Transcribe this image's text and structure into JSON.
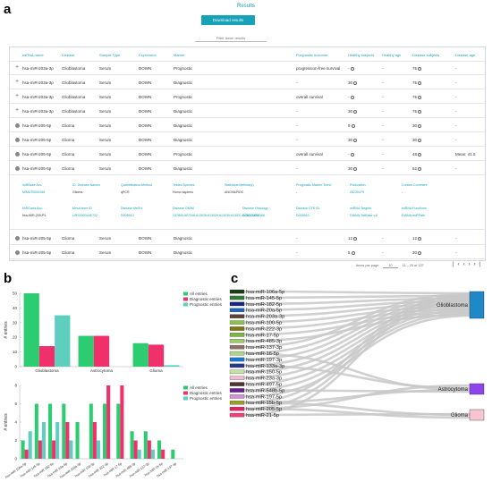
{
  "panel_labels": {
    "a": "a",
    "b": "b",
    "c": "c"
  },
  "results_title": "Results",
  "download_label": "Download results",
  "filter_placeholder": "Filter down results",
  "table": {
    "headers": [
      "miRNA name",
      "Disease",
      "Sample Type",
      "Expression",
      "Marker",
      "Prognostic outcome",
      "Healthy subjects",
      "Healthy age",
      "Disease subjects",
      "Disease age"
    ],
    "rows": [
      {
        "mirna": "hsa-miR-203a-3p",
        "disease": "Glioblastoma",
        "sample": "Serum",
        "expr": "DOWN",
        "marker": "Prognostic",
        "outcome": "progression-free survival",
        "healthy": "-",
        "hage": "-",
        "dsub": "75",
        "dage": "-"
      },
      {
        "mirna": "hsa-miR-203a-3p",
        "disease": "Glioblastoma",
        "sample": "Serum",
        "expr": "DOWN",
        "marker": "Diagnostic",
        "outcome": "-",
        "healthy": "30",
        "hage": "-",
        "dsub": "75",
        "dage": "-"
      },
      {
        "mirna": "hsa-miR-203a-3p",
        "disease": "Glioblastoma",
        "sample": "Serum",
        "expr": "DOWN",
        "marker": "Prognostic",
        "outcome": "overall survival",
        "healthy": "-",
        "hage": "-",
        "dsub": "75",
        "dage": "-"
      },
      {
        "mirna": "hsa-miR-203a-3p",
        "disease": "Glioblastoma",
        "sample": "Serum",
        "expr": "DOWN",
        "marker": "Diagnostic",
        "outcome": "-",
        "healthy": "30",
        "hage": "-",
        "dsub": "75",
        "dage": "-"
      },
      {
        "mirna": "hsa-miR-205-5p",
        "disease": "Glioma",
        "sample": "Serum",
        "expr": "DOWN",
        "marker": "Diagnostic",
        "outcome": "-",
        "healthy": "9",
        "hage": "-",
        "dsub": "30",
        "dage": "-"
      },
      {
        "mirna": "hsa-miR-205-5p",
        "disease": "Glioma",
        "sample": "Serum",
        "expr": "DOWN",
        "marker": "Diagnostic",
        "outcome": "-",
        "healthy": "30",
        "hage": "-",
        "dsub": "30",
        "dage": "-"
      },
      {
        "mirna": "hsa-miR-205-5p",
        "disease": "Glioma",
        "sample": "Serum",
        "expr": "DOWN",
        "marker": "Prognostic",
        "outcome": "overall survival",
        "healthy": "-",
        "hage": "-",
        "dsub": "48",
        "dage": "Mean: 41.5"
      },
      {
        "mirna": "hsa-miR-205-5p",
        "disease": "Glioma",
        "sample": "Serum",
        "expr": "DOWN",
        "marker": "Diagnostic",
        "outcome": "-",
        "healthy": "30",
        "hage": "-",
        "dsub": "52",
        "dage": "-"
      }
    ],
    "bottom_rows": [
      {
        "mirna": "hsa-miR-205-5p",
        "disease": "Glioma",
        "sample": "Serum",
        "expr": "DOWN",
        "marker": "Diagnostic",
        "outcome": "-",
        "healthy": "12",
        "hage": "-",
        "dsub": "12",
        "dage": "-"
      },
      {
        "mirna": "hsa-miR-205-5p",
        "disease": "Glioma",
        "sample": "Serum",
        "expr": "DOWN",
        "marker": "Diagnostic",
        "outcome": "-",
        "healthy": "5",
        "hage": "-",
        "dsub": "30",
        "dage": "-"
      }
    ],
    "detail": {
      "l1": [
        "miRBase Acc.",
        "ID. Disease Names",
        "Quantification Method",
        "Tested Species",
        "Statistical Method(s)",
        "Prognostic Marker Trend",
        "Publication",
        "Curator Comment"
      ],
      "v1": [
        "MIMAT0000266",
        "Glioma",
        "qPCR",
        "Homo sapiens",
        "ANOVA/ROC",
        "-",
        "28230479",
        "-"
      ],
      "l2": [
        "MiRCarta Acc.",
        "Mesh-term ID",
        "Disease MeSH",
        "Disease OMIM",
        "Disease Ontology",
        "Disease CTD ID",
        "miRNA Targets",
        "miRNA Functions"
      ],
      "v2": [
        "hsa-MIR-205-P1",
        "URS000044E722",
        "D005910",
        "137800;607248;613028;613029;613030;613031;613032;616568",
        "DOID:3070",
        "D005910",
        "DIANA-TarBase v.8",
        "DIANA-miRPath"
      ]
    },
    "rows_per_page_label": "Items per page",
    "rows_per_page": "10",
    "range_label": "11 – 20 of 137"
  },
  "chart_b1": {
    "type": "bar",
    "categories": [
      "Glioblastoma",
      "Astrocytoma",
      "Glioma"
    ],
    "series": [
      {
        "name": "All entries",
        "values": [
          50,
          21,
          16
        ],
        "color": "#2ecc71"
      },
      {
        "name": "Diagnostic entries",
        "values": [
          14,
          21,
          15
        ],
        "color": "#f0306a"
      },
      {
        "name": "Prognostic entries",
        "values": [
          35,
          0,
          1
        ],
        "color": "#5ecfbf"
      }
    ],
    "ylabel": "# entries",
    "yticks": [
      "50",
      "40",
      "30",
      "20",
      "10",
      "0"
    ],
    "ylim": [
      0,
      50
    ]
  },
  "chart_b2": {
    "type": "bar",
    "categories": [
      "hsa-miR-106a-5p",
      "hsa-miR-145-5p",
      "hsa-miR-182-5p",
      "hsa-miR-20a-5p",
      "hsa-miR-203a-3p",
      "hsa-miR-100-5p",
      "hsa-miR-222-3p",
      "hsa-miR-17-5p",
      "hsa-miR-485-3p",
      "hsa-miR-137-3p",
      "hsa-miR-16-5p",
      "hsa-miR-197-3p"
    ],
    "series": [
      {
        "name": "All entries",
        "values": [
          2,
          6,
          6,
          6,
          4,
          6,
          6,
          6,
          3,
          3,
          2,
          1
        ],
        "color": "#2ecc71"
      },
      {
        "name": "Diagnostic entries",
        "values": [
          1,
          2,
          2,
          4,
          0,
          4,
          8,
          8,
          2,
          2,
          1,
          0
        ],
        "color": "#f0306a"
      },
      {
        "name": "Prognostic entries",
        "values": [
          3,
          4,
          4,
          2,
          0,
          2,
          0,
          0,
          1,
          1,
          0,
          0
        ],
        "color": "#5ecfbf"
      }
    ],
    "ylabel": "# entries",
    "yticks": [
      "8",
      "6",
      "4",
      "2",
      "0"
    ],
    "ylim": [
      0,
      8
    ]
  },
  "sankey": {
    "genes": [
      {
        "name": "hsa-miR-106a-5p",
        "color": "#1b3a1a"
      },
      {
        "name": "hsa-miR-145-5p",
        "color": "#2e7d32"
      },
      {
        "name": "hsa-miR-182-5p",
        "color": "#1a237e"
      },
      {
        "name": "hsa-miR-20a-5p",
        "color": "#1565c0"
      },
      {
        "name": "hsa-miR-203a-3p",
        "color": "#5d4037"
      },
      {
        "name": "hsa-miR-100-5p",
        "color": "#8bc34a"
      },
      {
        "name": "hsa-miR-222-3p",
        "color": "#827717"
      },
      {
        "name": "hsa-miR-17-5p",
        "color": "#7cb342"
      },
      {
        "name": "hsa-miR-485-3p",
        "color": "#9ccc65"
      },
      {
        "name": "hsa-miR-137-3p",
        "color": "#8d6e63"
      },
      {
        "name": "hsa-miR-16-5p",
        "color": "#aed581"
      },
      {
        "name": "hsa-miR-197-3p",
        "color": "#1976d2"
      },
      {
        "name": "hsa-miR-133a-3p",
        "color": "#283593"
      },
      {
        "name": "hsa-miR-150-5p",
        "color": "#c5e1a5"
      },
      {
        "name": "hsa-miR-23a-3p",
        "color": "#f8bbd0"
      },
      {
        "name": "hsa-miR-497-5p",
        "color": "#4e342e"
      },
      {
        "name": "hsa-miR-548b-5p",
        "color": "#6a1b9a"
      },
      {
        "name": "hsa-miR-197-5p",
        "color": "#ce93d8"
      },
      {
        "name": "hsa-miR-15b-5p",
        "color": "#9e9d24"
      },
      {
        "name": "hsa-miR-205-5p",
        "color": "#e91e63"
      },
      {
        "name": "hsa-miR-21-5p",
        "color": "#ec407a"
      }
    ],
    "targets": [
      {
        "name": "Glioblastoma",
        "color": "#1e88c8"
      },
      {
        "name": "Astrocytoma",
        "color": "#8e44ec"
      },
      {
        "name": "Glioma",
        "color": "#f7c6d2"
      }
    ]
  }
}
